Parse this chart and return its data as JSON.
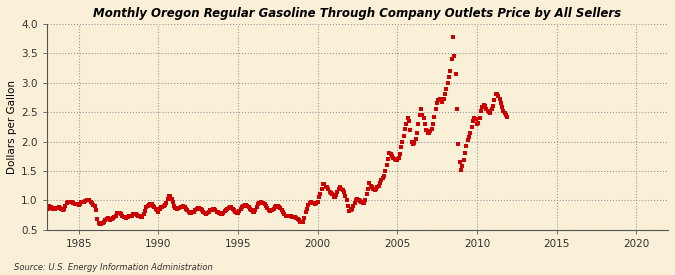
{
  "title": "Monthly Oregon Regular Gasoline Through Company Outlets Price by All Sellers",
  "ylabel": "Dollars per Gallon",
  "source": "Source: U.S. Energy Information Administration",
  "xlim": [
    1983,
    2022
  ],
  "ylim": [
    0.5,
    4.0
  ],
  "xticks": [
    1985,
    1990,
    1995,
    2000,
    2005,
    2010,
    2015,
    2020
  ],
  "yticks": [
    0.5,
    1.0,
    1.5,
    2.0,
    2.5,
    3.0,
    3.5,
    4.0
  ],
  "background_color": "#FAF0D7",
  "dot_color": "#CC0000",
  "data": [
    [
      1983.08,
      0.86
    ],
    [
      1983.17,
      0.9
    ],
    [
      1983.25,
      0.89
    ],
    [
      1983.33,
      0.87
    ],
    [
      1983.42,
      0.86
    ],
    [
      1983.5,
      0.85
    ],
    [
      1983.58,
      0.87
    ],
    [
      1983.67,
      0.87
    ],
    [
      1983.75,
      0.88
    ],
    [
      1983.83,
      0.87
    ],
    [
      1983.92,
      0.85
    ],
    [
      1984.0,
      0.84
    ],
    [
      1984.08,
      0.86
    ],
    [
      1984.17,
      0.9
    ],
    [
      1984.25,
      0.96
    ],
    [
      1984.33,
      0.98
    ],
    [
      1984.42,
      0.98
    ],
    [
      1984.5,
      0.97
    ],
    [
      1984.58,
      0.97
    ],
    [
      1984.67,
      0.95
    ],
    [
      1984.75,
      0.94
    ],
    [
      1984.83,
      0.94
    ],
    [
      1984.92,
      0.93
    ],
    [
      1985.0,
      0.92
    ],
    [
      1985.08,
      0.94
    ],
    [
      1985.17,
      0.97
    ],
    [
      1985.25,
      0.98
    ],
    [
      1985.33,
      0.98
    ],
    [
      1985.42,
      0.99
    ],
    [
      1985.5,
      1.0
    ],
    [
      1985.58,
      1.01
    ],
    [
      1985.67,
      1.0
    ],
    [
      1985.75,
      0.97
    ],
    [
      1985.83,
      0.95
    ],
    [
      1985.92,
      0.92
    ],
    [
      1986.0,
      0.9
    ],
    [
      1986.08,
      0.83
    ],
    [
      1986.17,
      0.68
    ],
    [
      1986.25,
      0.61
    ],
    [
      1986.33,
      0.6
    ],
    [
      1986.42,
      0.6
    ],
    [
      1986.5,
      0.62
    ],
    [
      1986.58,
      0.64
    ],
    [
      1986.67,
      0.66
    ],
    [
      1986.75,
      0.68
    ],
    [
      1986.83,
      0.7
    ],
    [
      1986.92,
      0.68
    ],
    [
      1987.0,
      0.67
    ],
    [
      1987.08,
      0.68
    ],
    [
      1987.17,
      0.7
    ],
    [
      1987.25,
      0.72
    ],
    [
      1987.33,
      0.74
    ],
    [
      1987.42,
      0.78
    ],
    [
      1987.5,
      0.79
    ],
    [
      1987.58,
      0.78
    ],
    [
      1987.67,
      0.76
    ],
    [
      1987.75,
      0.74
    ],
    [
      1987.83,
      0.72
    ],
    [
      1987.92,
      0.71
    ],
    [
      1988.0,
      0.7
    ],
    [
      1988.08,
      0.71
    ],
    [
      1988.17,
      0.73
    ],
    [
      1988.25,
      0.74
    ],
    [
      1988.33,
      0.74
    ],
    [
      1988.42,
      0.76
    ],
    [
      1988.5,
      0.77
    ],
    [
      1988.58,
      0.77
    ],
    [
      1988.67,
      0.75
    ],
    [
      1988.75,
      0.74
    ],
    [
      1988.83,
      0.73
    ],
    [
      1988.92,
      0.72
    ],
    [
      1989.0,
      0.72
    ],
    [
      1989.08,
      0.77
    ],
    [
      1989.17,
      0.82
    ],
    [
      1989.25,
      0.89
    ],
    [
      1989.33,
      0.9
    ],
    [
      1989.42,
      0.92
    ],
    [
      1989.5,
      0.93
    ],
    [
      1989.58,
      0.93
    ],
    [
      1989.67,
      0.91
    ],
    [
      1989.75,
      0.88
    ],
    [
      1989.83,
      0.85
    ],
    [
      1989.92,
      0.83
    ],
    [
      1990.0,
      0.81
    ],
    [
      1990.08,
      0.85
    ],
    [
      1990.17,
      0.88
    ],
    [
      1990.25,
      0.89
    ],
    [
      1990.33,
      0.9
    ],
    [
      1990.42,
      0.92
    ],
    [
      1990.5,
      0.96
    ],
    [
      1990.58,
      1.02
    ],
    [
      1990.67,
      1.07
    ],
    [
      1990.75,
      1.08
    ],
    [
      1990.83,
      1.03
    ],
    [
      1990.92,
      0.97
    ],
    [
      1991.0,
      0.91
    ],
    [
      1991.08,
      0.87
    ],
    [
      1991.17,
      0.86
    ],
    [
      1991.25,
      0.87
    ],
    [
      1991.33,
      0.87
    ],
    [
      1991.42,
      0.88
    ],
    [
      1991.5,
      0.89
    ],
    [
      1991.58,
      0.9
    ],
    [
      1991.67,
      0.88
    ],
    [
      1991.75,
      0.85
    ],
    [
      1991.83,
      0.83
    ],
    [
      1991.92,
      0.8
    ],
    [
      1992.0,
      0.78
    ],
    [
      1992.08,
      0.79
    ],
    [
      1992.17,
      0.8
    ],
    [
      1992.25,
      0.81
    ],
    [
      1992.33,
      0.83
    ],
    [
      1992.42,
      0.85
    ],
    [
      1992.5,
      0.87
    ],
    [
      1992.58,
      0.87
    ],
    [
      1992.67,
      0.86
    ],
    [
      1992.75,
      0.83
    ],
    [
      1992.83,
      0.8
    ],
    [
      1992.92,
      0.78
    ],
    [
      1993.0,
      0.76
    ],
    [
      1993.08,
      0.79
    ],
    [
      1993.17,
      0.81
    ],
    [
      1993.25,
      0.83
    ],
    [
      1993.33,
      0.84
    ],
    [
      1993.42,
      0.85
    ],
    [
      1993.5,
      0.85
    ],
    [
      1993.58,
      0.83
    ],
    [
      1993.67,
      0.81
    ],
    [
      1993.75,
      0.8
    ],
    [
      1993.83,
      0.79
    ],
    [
      1993.92,
      0.76
    ],
    [
      1994.0,
      0.76
    ],
    [
      1994.08,
      0.78
    ],
    [
      1994.17,
      0.82
    ],
    [
      1994.25,
      0.84
    ],
    [
      1994.33,
      0.85
    ],
    [
      1994.42,
      0.87
    ],
    [
      1994.5,
      0.89
    ],
    [
      1994.58,
      0.88
    ],
    [
      1994.67,
      0.86
    ],
    [
      1994.75,
      0.83
    ],
    [
      1994.83,
      0.81
    ],
    [
      1994.92,
      0.79
    ],
    [
      1995.0,
      0.78
    ],
    [
      1995.08,
      0.82
    ],
    [
      1995.17,
      0.85
    ],
    [
      1995.25,
      0.88
    ],
    [
      1995.33,
      0.9
    ],
    [
      1995.42,
      0.92
    ],
    [
      1995.5,
      0.92
    ],
    [
      1995.58,
      0.91
    ],
    [
      1995.67,
      0.89
    ],
    [
      1995.75,
      0.86
    ],
    [
      1995.83,
      0.83
    ],
    [
      1995.92,
      0.8
    ],
    [
      1996.0,
      0.8
    ],
    [
      1996.08,
      0.84
    ],
    [
      1996.17,
      0.89
    ],
    [
      1996.25,
      0.94
    ],
    [
      1996.33,
      0.96
    ],
    [
      1996.42,
      0.97
    ],
    [
      1996.5,
      0.96
    ],
    [
      1996.58,
      0.95
    ],
    [
      1996.67,
      0.93
    ],
    [
      1996.75,
      0.9
    ],
    [
      1996.83,
      0.87
    ],
    [
      1996.92,
      0.84
    ],
    [
      1997.0,
      0.82
    ],
    [
      1997.08,
      0.83
    ],
    [
      1997.17,
      0.84
    ],
    [
      1997.25,
      0.86
    ],
    [
      1997.33,
      0.88
    ],
    [
      1997.42,
      0.9
    ],
    [
      1997.5,
      0.9
    ],
    [
      1997.58,
      0.89
    ],
    [
      1997.67,
      0.87
    ],
    [
      1997.75,
      0.84
    ],
    [
      1997.83,
      0.81
    ],
    [
      1997.92,
      0.77
    ],
    [
      1998.0,
      0.74
    ],
    [
      1998.08,
      0.74
    ],
    [
      1998.17,
      0.74
    ],
    [
      1998.25,
      0.74
    ],
    [
      1998.33,
      0.73
    ],
    [
      1998.42,
      0.72
    ],
    [
      1998.5,
      0.72
    ],
    [
      1998.58,
      0.71
    ],
    [
      1998.67,
      0.7
    ],
    [
      1998.75,
      0.68
    ],
    [
      1998.83,
      0.66
    ],
    [
      1998.92,
      0.64
    ],
    [
      1999.0,
      0.63
    ],
    [
      1999.08,
      0.64
    ],
    [
      1999.17,
      0.7
    ],
    [
      1999.25,
      0.8
    ],
    [
      1999.33,
      0.86
    ],
    [
      1999.42,
      0.92
    ],
    [
      1999.5,
      0.96
    ],
    [
      1999.58,
      0.97
    ],
    [
      1999.67,
      0.96
    ],
    [
      1999.75,
      0.95
    ],
    [
      1999.83,
      0.94
    ],
    [
      1999.92,
      0.95
    ],
    [
      2000.0,
      0.98
    ],
    [
      2000.08,
      1.05
    ],
    [
      2000.17,
      1.11
    ],
    [
      2000.25,
      1.19
    ],
    [
      2000.33,
      1.28
    ],
    [
      2000.42,
      1.27
    ],
    [
      2000.5,
      1.23
    ],
    [
      2000.58,
      1.22
    ],
    [
      2000.67,
      1.19
    ],
    [
      2000.75,
      1.15
    ],
    [
      2000.83,
      1.13
    ],
    [
      2000.92,
      1.1
    ],
    [
      2001.0,
      1.06
    ],
    [
      2001.08,
      1.05
    ],
    [
      2001.17,
      1.09
    ],
    [
      2001.25,
      1.14
    ],
    [
      2001.33,
      1.19
    ],
    [
      2001.42,
      1.22
    ],
    [
      2001.5,
      1.2
    ],
    [
      2001.58,
      1.17
    ],
    [
      2001.67,
      1.14
    ],
    [
      2001.75,
      1.08
    ],
    [
      2001.83,
      1.0
    ],
    [
      2001.92,
      0.9
    ],
    [
      2002.0,
      0.82
    ],
    [
      2002.08,
      0.84
    ],
    [
      2002.17,
      0.86
    ],
    [
      2002.25,
      0.9
    ],
    [
      2002.33,
      0.95
    ],
    [
      2002.42,
      1.0
    ],
    [
      2002.5,
      1.02
    ],
    [
      2002.58,
      1.0
    ],
    [
      2002.67,
      0.99
    ],
    [
      2002.75,
      0.98
    ],
    [
      2002.83,
      0.96
    ],
    [
      2002.92,
      0.95
    ],
    [
      2003.0,
      1.0
    ],
    [
      2003.08,
      1.1
    ],
    [
      2003.17,
      1.2
    ],
    [
      2003.25,
      1.3
    ],
    [
      2003.33,
      1.25
    ],
    [
      2003.42,
      1.22
    ],
    [
      2003.5,
      1.2
    ],
    [
      2003.58,
      1.18
    ],
    [
      2003.67,
      1.2
    ],
    [
      2003.75,
      1.22
    ],
    [
      2003.83,
      1.25
    ],
    [
      2003.92,
      1.3
    ],
    [
      2004.0,
      1.35
    ],
    [
      2004.08,
      1.38
    ],
    [
      2004.17,
      1.42
    ],
    [
      2004.25,
      1.5
    ],
    [
      2004.33,
      1.6
    ],
    [
      2004.42,
      1.7
    ],
    [
      2004.5,
      1.8
    ],
    [
      2004.58,
      1.78
    ],
    [
      2004.67,
      1.75
    ],
    [
      2004.75,
      1.72
    ],
    [
      2004.83,
      1.7
    ],
    [
      2004.92,
      1.68
    ],
    [
      2005.0,
      1.68
    ],
    [
      2005.08,
      1.72
    ],
    [
      2005.17,
      1.79
    ],
    [
      2005.25,
      1.9
    ],
    [
      2005.33,
      2.0
    ],
    [
      2005.42,
      2.1
    ],
    [
      2005.5,
      2.22
    ],
    [
      2005.58,
      2.3
    ],
    [
      2005.67,
      2.4
    ],
    [
      2005.75,
      2.35
    ],
    [
      2005.83,
      2.2
    ],
    [
      2005.92,
      2.0
    ],
    [
      2006.0,
      1.95
    ],
    [
      2006.08,
      1.98
    ],
    [
      2006.17,
      2.05
    ],
    [
      2006.25,
      2.15
    ],
    [
      2006.33,
      2.3
    ],
    [
      2006.42,
      2.45
    ],
    [
      2006.5,
      2.55
    ],
    [
      2006.58,
      2.45
    ],
    [
      2006.67,
      2.4
    ],
    [
      2006.75,
      2.3
    ],
    [
      2006.83,
      2.2
    ],
    [
      2006.92,
      2.15
    ],
    [
      2007.0,
      2.15
    ],
    [
      2007.08,
      2.18
    ],
    [
      2007.17,
      2.22
    ],
    [
      2007.25,
      2.3
    ],
    [
      2007.33,
      2.42
    ],
    [
      2007.42,
      2.55
    ],
    [
      2007.5,
      2.65
    ],
    [
      2007.58,
      2.7
    ],
    [
      2007.67,
      2.72
    ],
    [
      2007.75,
      2.7
    ],
    [
      2007.83,
      2.68
    ],
    [
      2007.92,
      2.72
    ],
    [
      2008.0,
      2.8
    ],
    [
      2008.08,
      2.9
    ],
    [
      2008.17,
      3.0
    ],
    [
      2008.25,
      3.1
    ],
    [
      2008.33,
      3.2
    ],
    [
      2008.42,
      3.4
    ],
    [
      2008.5,
      3.78
    ],
    [
      2008.58,
      3.45
    ],
    [
      2008.67,
      3.15
    ],
    [
      2008.75,
      2.55
    ],
    [
      2008.83,
      1.95
    ],
    [
      2008.92,
      1.65
    ],
    [
      2009.0,
      1.52
    ],
    [
      2009.08,
      1.58
    ],
    [
      2009.17,
      1.68
    ],
    [
      2009.25,
      1.8
    ],
    [
      2009.33,
      1.92
    ],
    [
      2009.42,
      2.02
    ],
    [
      2009.5,
      2.08
    ],
    [
      2009.58,
      2.15
    ],
    [
      2009.67,
      2.25
    ],
    [
      2009.75,
      2.35
    ],
    [
      2009.83,
      2.4
    ],
    [
      2009.92,
      2.38
    ],
    [
      2010.0,
      2.3
    ],
    [
      2010.08,
      2.32
    ],
    [
      2010.17,
      2.4
    ],
    [
      2010.25,
      2.52
    ],
    [
      2010.33,
      2.58
    ],
    [
      2010.42,
      2.62
    ],
    [
      2010.5,
      2.6
    ],
    [
      2010.58,
      2.55
    ],
    [
      2010.67,
      2.52
    ],
    [
      2010.75,
      2.5
    ],
    [
      2010.83,
      2.48
    ],
    [
      2010.92,
      2.55
    ],
    [
      2011.0,
      2.6
    ],
    [
      2011.08,
      2.7
    ],
    [
      2011.17,
      2.8
    ],
    [
      2011.25,
      2.8
    ],
    [
      2011.33,
      2.78
    ],
    [
      2011.42,
      2.72
    ],
    [
      2011.5,
      2.65
    ],
    [
      2011.58,
      2.58
    ],
    [
      2011.67,
      2.52
    ],
    [
      2011.75,
      2.48
    ],
    [
      2011.83,
      2.45
    ],
    [
      2011.92,
      2.42
    ]
  ]
}
